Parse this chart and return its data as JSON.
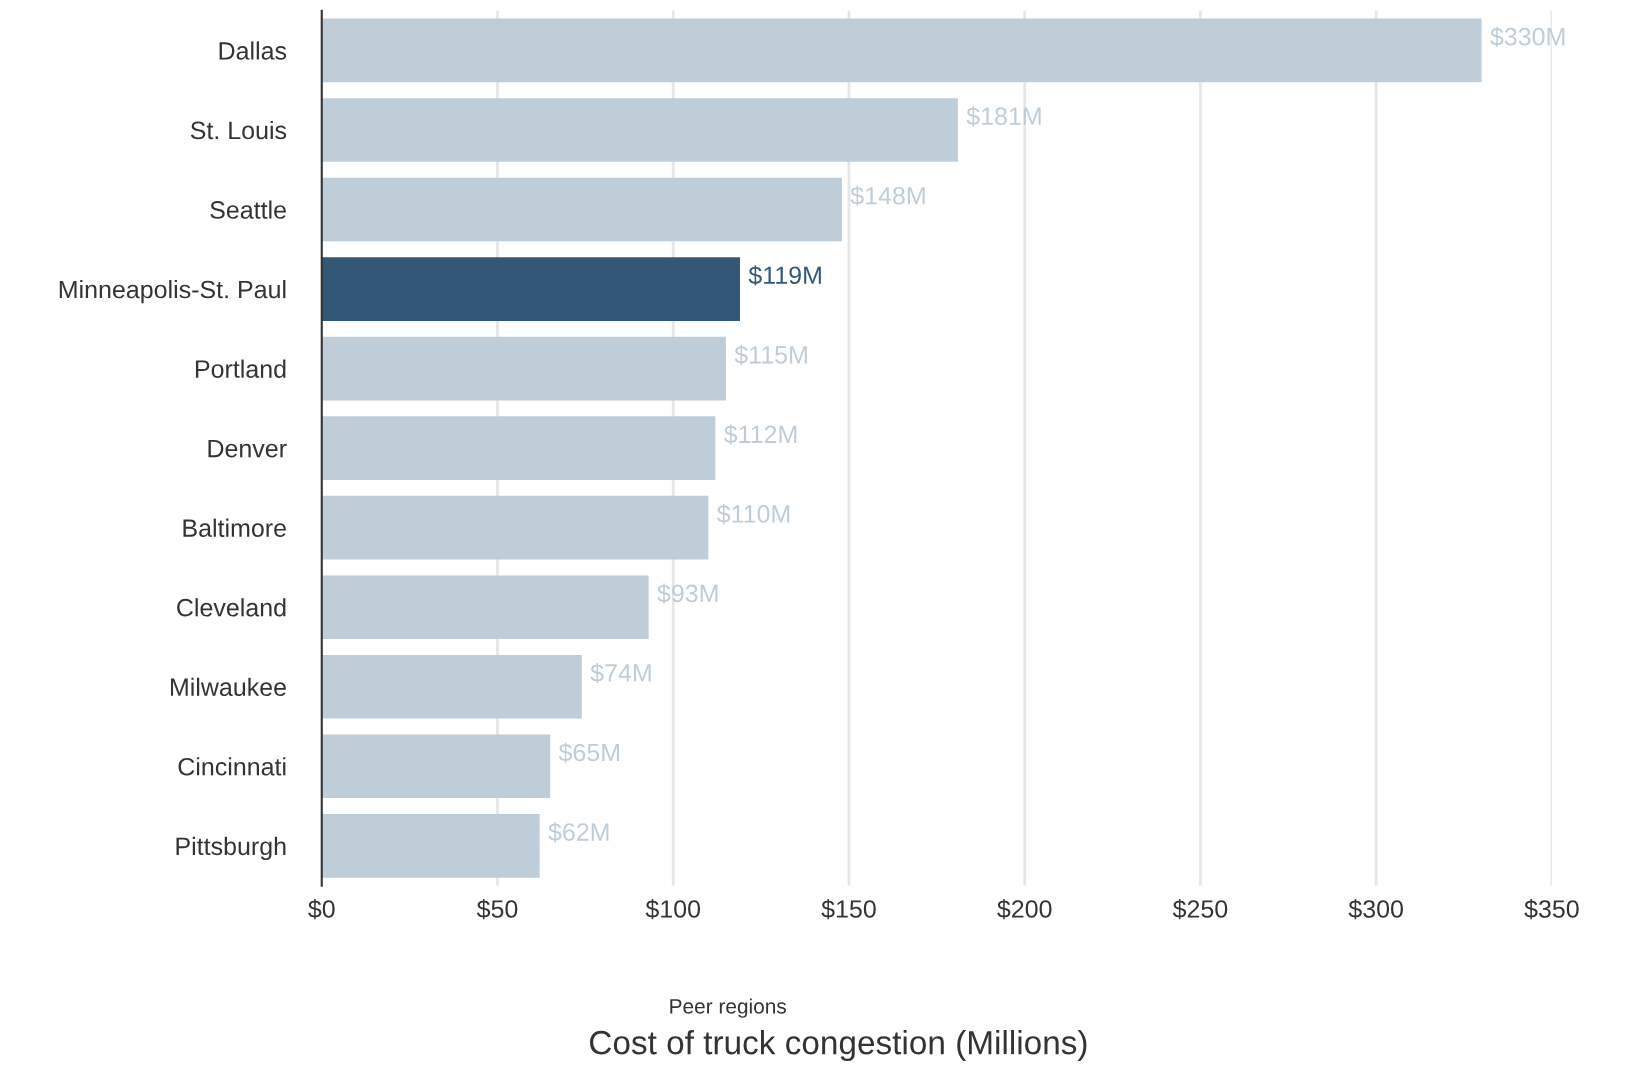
{
  "chart_data": {
    "type": "bar",
    "orientation": "horizontal",
    "xlabel": "Cost of truck congestion (Millions)",
    "annotations": [
      "Peer regions"
    ],
    "categories": [
      "Dallas",
      "St. Louis",
      "Seattle",
      "Minneapolis-St. Paul",
      "Portland",
      "Denver",
      "Baltimore",
      "Cleveland",
      "Milwaukee",
      "Cincinnati",
      "Pittsburgh"
    ],
    "values": [
      330,
      181,
      148,
      119,
      115,
      112,
      110,
      93,
      74,
      65,
      62
    ],
    "value_labels": [
      "$330M",
      "$181M",
      "$148M",
      "$119M",
      "$115M",
      "$112M",
      "$110M",
      "$93M",
      "$74M",
      "$65M",
      "$62M"
    ],
    "colors": [
      "#bfcdd8",
      "#bfcdd8",
      "#bfcdd8",
      "#335877",
      "#bfcdd8",
      "#bfcdd8",
      "#bfcdd8",
      "#bfcdd8",
      "#bfcdd8",
      "#bfcdd8",
      "#bfcdd8"
    ],
    "xlim": [
      0,
      350
    ],
    "xticks": [
      {
        "value": 0,
        "label": "$0"
      },
      {
        "value": 50,
        "label": "$50"
      },
      {
        "value": 100,
        "label": "$100"
      },
      {
        "value": 150,
        "label": "$150"
      },
      {
        "value": 200,
        "label": "$200"
      },
      {
        "value": 250,
        "label": "$250"
      },
      {
        "value": 300,
        "label": "$300"
      },
      {
        "value": 350,
        "label": "$350"
      }
    ],
    "grid": "x",
    "legend": false
  }
}
